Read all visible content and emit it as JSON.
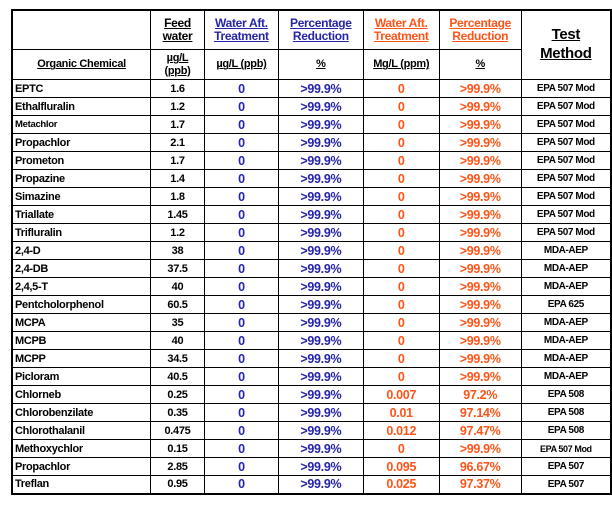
{
  "colors": {
    "blue": "#2424a8",
    "orange": "#ff5417",
    "text": "#000000",
    "border": "#000000",
    "background": "#ffffff"
  },
  "table": {
    "header": {
      "feed_water": "Feed\nwater",
      "water_aft_treatment_ppb": "Water Aft.\nTreatment",
      "percentage_reduction_ppb": "Percentage\nReduction",
      "water_aft_treatment_ppm": "Water Aft.\nTreatment",
      "percentage_reduction_ppm": "Percentage\nReduction",
      "test_method": "Test\nMethod"
    },
    "subheader": {
      "organic_chemical": "Organic Chemical",
      "feed_units": "µg/L\n(ppb)",
      "treated_ppb_units": "µg/L (ppb)",
      "reduction_ppb_units": "%",
      "treated_ppm_units": "Mg/L (ppm)",
      "reduction_ppm_units": "%"
    },
    "rows": [
      {
        "chemical": "EPTC",
        "feed": "1.6",
        "treated_ppb": "0",
        "reduction_ppb": ">99.9%",
        "treated_ppm": "0",
        "reduction_ppm": ">99.9%",
        "method": "EPA 507 Mod"
      },
      {
        "chemical": "Ethalfluralin",
        "feed": "1.2",
        "treated_ppb": "0",
        "reduction_ppb": ">99.9%",
        "treated_ppm": "0",
        "reduction_ppm": ">99.9%",
        "method": "EPA 507 Mod"
      },
      {
        "chemical": "Metachlor",
        "feed": "1.7",
        "treated_ppb": "0",
        "reduction_ppb": ">99.9%",
        "treated_ppm": "0",
        "reduction_ppm": ">99.9%",
        "method": "EPA 507 Mod",
        "small_name": true
      },
      {
        "chemical": "Propachlor",
        "feed": "2.1",
        "treated_ppb": "0",
        "reduction_ppb": ">99.9%",
        "treated_ppm": "0",
        "reduction_ppm": ">99.9%",
        "method": "EPA 507 Mod"
      },
      {
        "chemical": "Prometon",
        "feed": "1.7",
        "treated_ppb": "0",
        "reduction_ppb": ">99.9%",
        "treated_ppm": "0",
        "reduction_ppm": ">99.9%",
        "method": "EPA 507 Mod"
      },
      {
        "chemical": "Propazine",
        "feed": "1.4",
        "treated_ppb": "0",
        "reduction_ppb": ">99.9%",
        "treated_ppm": "0",
        "reduction_ppm": ">99.9%",
        "method": "EPA 507 Mod"
      },
      {
        "chemical": "Simazine",
        "feed": "1.8",
        "treated_ppb": "0",
        "reduction_ppb": ">99.9%",
        "treated_ppm": "0",
        "reduction_ppm": ">99.9%",
        "method": "EPA 507 Mod"
      },
      {
        "chemical": "Triallate",
        "feed": "1.45",
        "treated_ppb": "0",
        "reduction_ppb": ">99.9%",
        "treated_ppm": "0",
        "reduction_ppm": ">99.9%",
        "method": "EPA 507 Mod"
      },
      {
        "chemical": "Trifluralin",
        "feed": "1.2",
        "treated_ppb": "0",
        "reduction_ppb": ">99.9%",
        "treated_ppm": "0",
        "reduction_ppm": ">99.9%",
        "method": "EPA 507 Mod"
      },
      {
        "chemical": "2,4-D",
        "feed": "38",
        "treated_ppb": "0",
        "reduction_ppb": ">99.9%",
        "treated_ppm": "0",
        "reduction_ppm": ">99.9%",
        "method": "MDA-AEP"
      },
      {
        "chemical": "2,4-DB",
        "feed": "37.5",
        "treated_ppb": "0",
        "reduction_ppb": ">99.9%",
        "treated_ppm": "0",
        "reduction_ppm": ">99.9%",
        "method": "MDA-AEP"
      },
      {
        "chemical": "2,4,5-T",
        "feed": "40",
        "treated_ppb": "0",
        "reduction_ppb": ">99.9%",
        "treated_ppm": "0",
        "reduction_ppm": ">99.9%",
        "method": "MDA-AEP"
      },
      {
        "chemical": "Pentcholorphenol",
        "feed": "60.5",
        "treated_ppb": "0",
        "reduction_ppb": ">99.9%",
        "treated_ppm": "0",
        "reduction_ppm": ">99.9%",
        "method": "EPA 625"
      },
      {
        "chemical": "MCPA",
        "feed": "35",
        "treated_ppb": "0",
        "reduction_ppb": ">99.9%",
        "treated_ppm": "0",
        "reduction_ppm": ">99.9%",
        "method": "MDA-AEP"
      },
      {
        "chemical": "MCPB",
        "feed": "40",
        "treated_ppb": "0",
        "reduction_ppb": ">99.9%",
        "treated_ppm": "0",
        "reduction_ppm": ">99.9%",
        "method": "MDA-AEP"
      },
      {
        "chemical": "MCPP",
        "feed": "34.5",
        "treated_ppb": "0",
        "reduction_ppb": ">99.9%",
        "treated_ppm": "0",
        "reduction_ppm": ">99.9%",
        "method": "MDA-AEP"
      },
      {
        "chemical": "Picloram",
        "feed": "40.5",
        "treated_ppb": "0",
        "reduction_ppb": ">99.9%",
        "treated_ppm": "0",
        "reduction_ppm": ">99.9%",
        "method": "MDA-AEP"
      },
      {
        "chemical": "Chlorneb",
        "feed": "0.25",
        "treated_ppb": "0",
        "reduction_ppb": ">99.9%",
        "treated_ppm": "0.007",
        "reduction_ppm": "97.2%",
        "method": "EPA 508"
      },
      {
        "chemical": "Chlorobenzilate",
        "feed": "0.35",
        "treated_ppb": "0",
        "reduction_ppb": ">99.9%",
        "treated_ppm": "0.01",
        "reduction_ppm": "97.14%",
        "method": "EPA 508"
      },
      {
        "chemical": "Chlorothalanil",
        "feed": "0.475",
        "treated_ppb": "0",
        "reduction_ppb": ">99.9%",
        "treated_ppm": "0.012",
        "reduction_ppm": "97.47%",
        "method": "EPA 508"
      },
      {
        "chemical": "Methoxychlor",
        "feed": "0.15",
        "treated_ppb": "0",
        "reduction_ppb": ">99.9%",
        "treated_ppm": "0",
        "reduction_ppm": ">99.9%",
        "method": "EPA 507 Mod",
        "small_method": true
      },
      {
        "chemical": "Propachlor",
        "feed": "2.85",
        "treated_ppb": "0",
        "reduction_ppb": ">99.9%",
        "treated_ppm": "0.095",
        "reduction_ppm": "96.67%",
        "method": "EPA 507"
      },
      {
        "chemical": "Treflan",
        "feed": "0.95",
        "treated_ppb": "0",
        "reduction_ppb": ">99.9%",
        "treated_ppm": "0.025",
        "reduction_ppm": "97.37%",
        "method": "EPA 507"
      }
    ]
  }
}
